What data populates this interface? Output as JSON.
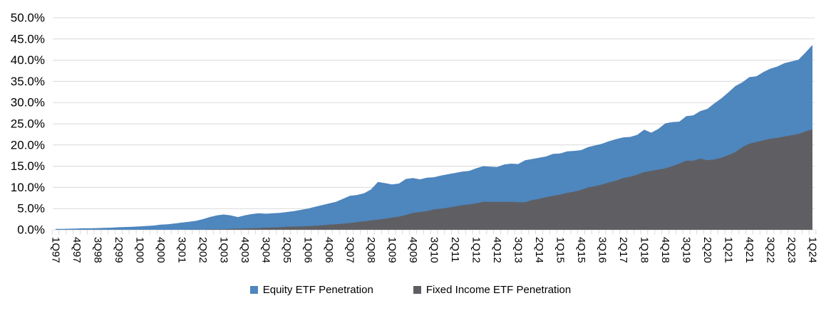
{
  "page": {
    "background": "#FFFFFF"
  },
  "chart_data": {
    "type": "area",
    "mode": "overlapping",
    "title": "",
    "xlabel": "",
    "ylabel": "",
    "ylim": [
      0,
      50
    ],
    "grid": "horizontal",
    "legend_position": "bottom",
    "y_tick_labels": [
      "0.0%",
      "5.0%",
      "10.0%",
      "15.0%",
      "20.0%",
      "25.0%",
      "30.0%",
      "35.0%",
      "40.0%",
      "45.0%",
      "50.0%"
    ],
    "x_label_every": 3,
    "x_tick_labels": [
      "1Q97",
      "4Q97",
      "3Q98",
      "2Q99",
      "1Q00",
      "4Q00",
      "3Q01",
      "2Q02",
      "1Q03",
      "4Q03",
      "3Q04",
      "2Q05",
      "1Q06",
      "4Q06",
      "3Q07",
      "2Q08",
      "1Q09",
      "4Q09",
      "3Q10",
      "2Q11",
      "1Q12",
      "4Q12",
      "3Q13",
      "2Q14",
      "1Q15",
      "4Q15",
      "3Q16",
      "2Q17",
      "1Q18",
      "4Q18",
      "3Q19",
      "2Q20",
      "1Q21",
      "4Q21",
      "3Q22",
      "2Q23",
      "1Q24"
    ],
    "quarters": [
      "1Q97",
      "2Q97",
      "3Q97",
      "4Q97",
      "1Q98",
      "2Q98",
      "3Q98",
      "4Q98",
      "1Q99",
      "2Q99",
      "3Q99",
      "4Q99",
      "1Q00",
      "2Q00",
      "3Q00",
      "4Q00",
      "1Q01",
      "2Q01",
      "3Q01",
      "4Q01",
      "1Q02",
      "2Q02",
      "3Q02",
      "4Q02",
      "1Q03",
      "2Q03",
      "3Q03",
      "4Q03",
      "1Q04",
      "2Q04",
      "3Q04",
      "4Q04",
      "1Q05",
      "2Q05",
      "3Q05",
      "4Q05",
      "1Q06",
      "2Q06",
      "3Q06",
      "4Q06",
      "1Q07",
      "2Q07",
      "3Q07",
      "4Q07",
      "1Q08",
      "2Q08",
      "3Q08",
      "4Q08",
      "1Q09",
      "2Q09",
      "3Q09",
      "4Q09",
      "1Q10",
      "2Q10",
      "3Q10",
      "4Q10",
      "1Q11",
      "2Q11",
      "3Q11",
      "4Q11",
      "1Q12",
      "2Q12",
      "3Q12",
      "4Q12",
      "1Q13",
      "2Q13",
      "3Q13",
      "4Q13",
      "1Q14",
      "2Q14",
      "3Q14",
      "4Q14",
      "1Q15",
      "2Q15",
      "3Q15",
      "4Q15",
      "1Q16",
      "2Q16",
      "3Q16",
      "4Q16",
      "1Q17",
      "2Q17",
      "3Q17",
      "4Q17",
      "1Q18",
      "2Q18",
      "3Q18",
      "4Q18",
      "1Q19",
      "2Q19",
      "3Q19",
      "4Q19",
      "1Q20",
      "2Q20",
      "3Q20",
      "4Q20",
      "1Q21",
      "2Q21",
      "3Q21",
      "4Q21",
      "1Q22",
      "2Q22",
      "3Q22",
      "4Q22",
      "1Q23",
      "2Q23",
      "3Q23",
      "4Q23",
      "1Q24"
    ],
    "series": [
      {
        "name": "Equity ETF Penetration",
        "color": "#4E86BE",
        "values": [
          0.2,
          0.2,
          0.25,
          0.3,
          0.35,
          0.35,
          0.4,
          0.45,
          0.5,
          0.6,
          0.65,
          0.7,
          0.8,
          0.9,
          1.0,
          1.2,
          1.3,
          1.5,
          1.7,
          1.9,
          2.1,
          2.5,
          3.0,
          3.4,
          3.6,
          3.4,
          3.0,
          3.4,
          3.7,
          3.9,
          3.8,
          3.9,
          4.0,
          4.2,
          4.4,
          4.7,
          5.0,
          5.4,
          5.8,
          6.2,
          6.6,
          7.3,
          8.0,
          8.2,
          8.6,
          9.5,
          11.3,
          11.0,
          10.7,
          10.9,
          12.0,
          12.2,
          11.9,
          12.3,
          12.4,
          12.8,
          13.1,
          13.4,
          13.7,
          13.9,
          14.5,
          15.0,
          14.9,
          14.8,
          15.4,
          15.6,
          15.5,
          16.4,
          16.7,
          17.0,
          17.3,
          17.9,
          18.0,
          18.5,
          18.6,
          18.8,
          19.5,
          19.9,
          20.3,
          20.9,
          21.4,
          21.8,
          21.9,
          22.4,
          23.6,
          22.9,
          23.8,
          25.1,
          25.4,
          25.5,
          26.8,
          27.0,
          28.0,
          28.5,
          29.8,
          31.0,
          32.4,
          33.9,
          34.8,
          36.0,
          36.2,
          37.2,
          38.0,
          38.5,
          39.3,
          39.7,
          40.1,
          41.8,
          43.6
        ]
      },
      {
        "name": "Fixed Income ETF Penetration",
        "color": "#5F5F63",
        "values": [
          0,
          0,
          0,
          0,
          0,
          0,
          0,
          0,
          0,
          0,
          0,
          0,
          0,
          0,
          0,
          0,
          0,
          0,
          0,
          0.05,
          0.05,
          0.05,
          0.1,
          0.1,
          0.15,
          0.2,
          0.25,
          0.3,
          0.35,
          0.4,
          0.5,
          0.55,
          0.6,
          0.7,
          0.75,
          0.8,
          0.85,
          0.95,
          1.05,
          1.2,
          1.3,
          1.45,
          1.6,
          1.8,
          2.0,
          2.2,
          2.4,
          2.6,
          2.9,
          3.1,
          3.5,
          4.0,
          4.2,
          4.4,
          4.8,
          5.0,
          5.2,
          5.5,
          5.8,
          6.0,
          6.2,
          6.6,
          6.6,
          6.6,
          6.6,
          6.6,
          6.5,
          6.5,
          7.0,
          7.3,
          7.7,
          8.0,
          8.3,
          8.7,
          9.0,
          9.4,
          10.0,
          10.3,
          10.7,
          11.2,
          11.6,
          12.2,
          12.5,
          13.0,
          13.6,
          13.9,
          14.2,
          14.5,
          15.0,
          15.6,
          16.3,
          16.3,
          16.8,
          16.4,
          16.6,
          17.0,
          17.6,
          18.3,
          19.5,
          20.3,
          20.7,
          21.1,
          21.5,
          21.7,
          22.0,
          22.3,
          22.6,
          23.2,
          23.7
        ]
      }
    ],
    "colors": {
      "gridline": "#D9D9D9",
      "tick": "#D9D9D9",
      "axis_text": "#000000"
    }
  }
}
